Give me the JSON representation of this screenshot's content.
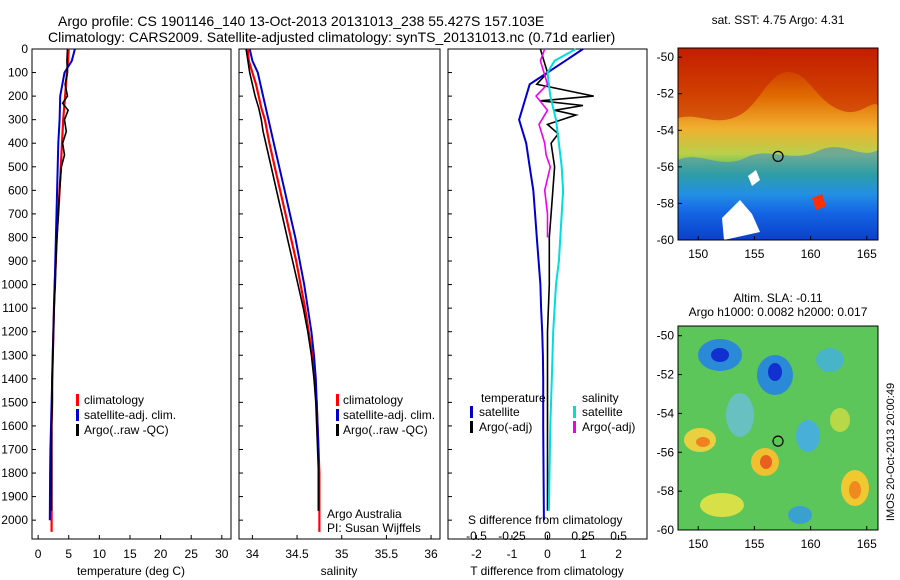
{
  "header": {
    "line1": "Argo profile: CS 1901146_140 13-Oct-2013 20131013_238 55.427S 157.103E",
    "line2": "Climatology: CARS2009. Satellite-adjusted climatology: synTS_20131013.nc (0.71d earlier)"
  },
  "depth_ticks": [
    "0",
    "100",
    "200",
    "300",
    "400",
    "500",
    "600",
    "700",
    "800",
    "900",
    "1000",
    "1100",
    "1200",
    "1300",
    "1400",
    "1500",
    "1600",
    "1700",
    "1800",
    "1900",
    "2000"
  ],
  "colors": {
    "climatology": "#ff0000",
    "satellite": "#0000cc",
    "argo": "#000000",
    "satellite_s": "#00dddd",
    "argo_s": "#ee00ee"
  },
  "chart_data": [
    {
      "id": "temperature",
      "type": "line",
      "xlabel": "temperature (deg C)",
      "ylabel": "",
      "xlim": [
        -1,
        31.5
      ],
      "ylim": [
        2080,
        0
      ],
      "xticks": [
        "0",
        "5",
        "10",
        "15",
        "20",
        "25",
        "30"
      ],
      "legend": [
        "climatology",
        "satellite-adj. clim.",
        "Argo(..raw -QC)"
      ],
      "series": [
        {
          "name": "climatology",
          "x": [
            5.0,
            4.9,
            4.7,
            4.4,
            4.1,
            3.9,
            3.7,
            3.5,
            3.3,
            3.0,
            2.9,
            2.7,
            2.6,
            2.5,
            2.4,
            2.3,
            2.3,
            2.2,
            2.2,
            2.2,
            2.2
          ],
          "y": [
            0,
            50,
            100,
            200,
            300,
            400,
            500,
            600,
            700,
            800,
            900,
            1000,
            1100,
            1200,
            1300,
            1400,
            1500,
            1600,
            1700,
            1800,
            2050
          ]
        },
        {
          "name": "satellite-adj. clim.",
          "x": [
            6.0,
            5.5,
            4.3,
            3.6,
            3.5,
            3.3,
            3.2,
            3.1,
            3.0,
            2.9,
            2.8,
            2.7,
            2.6,
            2.5,
            2.4,
            2.3,
            2.2,
            2.1,
            2.0,
            1.95,
            1.9
          ],
          "y": [
            0,
            50,
            100,
            200,
            300,
            400,
            500,
            600,
            700,
            800,
            900,
            1000,
            1100,
            1200,
            1300,
            1400,
            1500,
            1600,
            1700,
            1800,
            2000
          ]
        },
        {
          "name": "Argo(..raw -QC)",
          "x": [
            4.8,
            4.7,
            4.8,
            4.4,
            4.8,
            4.0,
            4.9,
            4.3,
            4.6,
            4.0,
            4.3,
            3.8,
            3.5,
            3.3,
            3.1,
            2.9,
            2.8,
            2.6,
            2.5,
            2.4,
            2.3,
            2.3,
            2.2,
            2.2,
            2.2,
            2.2
          ],
          "y": [
            0,
            50,
            100,
            150,
            200,
            230,
            260,
            300,
            350,
            400,
            450,
            500,
            600,
            700,
            800,
            900,
            1000,
            1100,
            1200,
            1300,
            1400,
            1500,
            1600,
            1700,
            1800,
            1960
          ]
        }
      ]
    },
    {
      "id": "salinity",
      "type": "line",
      "xlabel": "salinity",
      "ylabel": "",
      "xlim": [
        33.85,
        36.1
      ],
      "ylim": [
        2080,
        0
      ],
      "xticks": [
        "34",
        "34.5",
        "35",
        "35.5",
        "36"
      ],
      "legend": [
        "climatology",
        "satellite-adj. clim.",
        "Argo(..raw -QC)"
      ],
      "annotation": [
        "Argo Australia",
        "PI: Susan Wijffels"
      ],
      "series": [
        {
          "name": "climatology",
          "x": [
            33.95,
            33.96,
            34.0,
            34.04,
            34.07,
            34.1,
            34.14,
            34.19,
            34.25,
            34.31,
            34.37,
            34.43,
            34.49,
            34.54,
            34.59,
            34.63,
            34.67,
            34.7,
            34.72,
            34.73,
            34.74,
            34.75,
            34.75
          ],
          "y": [
            0,
            50,
            100,
            150,
            200,
            250,
            300,
            400,
            500,
            600,
            700,
            800,
            900,
            1000,
            1100,
            1200,
            1300,
            1400,
            1500,
            1600,
            1700,
            1800,
            2050
          ]
        },
        {
          "name": "satellite-adj. clim.",
          "x": [
            33.97,
            34.0,
            34.06,
            34.12,
            34.18,
            34.24,
            34.3,
            34.36,
            34.42,
            34.48,
            34.53,
            34.58,
            34.62,
            34.66,
            34.69,
            34.71,
            34.72,
            34.73,
            34.74,
            34.74,
            34.74
          ],
          "y": [
            0,
            50,
            100,
            200,
            300,
            400,
            500,
            600,
            700,
            800,
            900,
            1000,
            1100,
            1200,
            1300,
            1400,
            1500,
            1600,
            1700,
            1800,
            1960
          ]
        },
        {
          "name": "Argo(..raw -QC)",
          "x": [
            33.93,
            33.95,
            33.97,
            34.0,
            34.03,
            34.07,
            34.1,
            34.12,
            34.15,
            34.21,
            34.27,
            34.33,
            34.39,
            34.45,
            34.51,
            34.57,
            34.62,
            34.66,
            34.69,
            34.71,
            34.72,
            34.73,
            34.74,
            34.74,
            34.74
          ],
          "y": [
            0,
            50,
            100,
            150,
            200,
            250,
            300,
            350,
            400,
            500,
            600,
            700,
            800,
            900,
            1000,
            1100,
            1200,
            1300,
            1400,
            1500,
            1600,
            1700,
            1800,
            1900,
            1960
          ]
        }
      ]
    },
    {
      "id": "difference",
      "type": "line",
      "xlabel": "T difference from climatology",
      "top_label": "S difference from climatology",
      "xlim": [
        -2.8,
        2.8
      ],
      "ylim": [
        2080,
        0
      ],
      "xticks": [
        "-2",
        "-1",
        "0",
        "1",
        "2"
      ],
      "s_ticks": [
        "-0.5",
        "-0.25",
        "0",
        "0.25",
        "0.5"
      ],
      "legend_left": {
        "title": "temperature",
        "items": [
          "satellite",
          "Argo(-adj)"
        ]
      },
      "legend_right": {
        "title": "salinity",
        "items": [
          "satellite",
          "Argo(-adj)"
        ]
      },
      "series": [
        {
          "name": "T satellite",
          "x": [
            1.0,
            0.5,
            -0.5,
            -0.8,
            -0.6,
            -0.5,
            -0.4,
            -0.35,
            -0.3,
            -0.25,
            -0.2,
            -0.18,
            -0.15,
            -0.13,
            -0.12,
            -0.12,
            -0.12,
            -0.1
          ],
          "y": [
            0,
            50,
            150,
            300,
            400,
            500,
            600,
            700,
            800,
            900,
            1000,
            1100,
            1200,
            1300,
            1400,
            1500,
            1600,
            2000
          ]
        },
        {
          "name": "T Argo(-adj)",
          "x": [
            -0.2,
            -0.1,
            0.0,
            -0.3,
            1.3,
            -0.2,
            1.0,
            0.2,
            0.8,
            0.0,
            0.3,
            0.1,
            0.2,
            0.1,
            0.05,
            0.05,
            0.0,
            0.0,
            0.0,
            0.0
          ],
          "y": [
            0,
            50,
            100,
            150,
            200,
            220,
            240,
            260,
            280,
            320,
            360,
            400,
            500,
            700,
            800,
            1000,
            1200,
            1400,
            1600,
            1960
          ]
        },
        {
          "name": "S satellite",
          "x": [
            0.2,
            0.05,
            0.0,
            0.02,
            0.06,
            0.08,
            0.1,
            0.11,
            0.1,
            0.09,
            0.08,
            0.06,
            0.05,
            0.04,
            0.03,
            0.02,
            0.01
          ],
          "y": [
            0,
            50,
            100,
            200,
            300,
            400,
            500,
            600,
            700,
            800,
            900,
            1000,
            1100,
            1200,
            1400,
            1600,
            1960
          ]
        },
        {
          "name": "S Argo(-adj)",
          "x": [
            -0.02,
            -0.05,
            0.0,
            -0.08,
            0.0,
            -0.06,
            -0.02,
            -0.01,
            0.02,
            -0.02,
            0.0,
            0.0
          ],
          "y": [
            0,
            50,
            150,
            200,
            260,
            320,
            400,
            450,
            500,
            600,
            700,
            800
          ]
        }
      ]
    },
    {
      "id": "sst-map",
      "type": "heatmap",
      "title": "sat. SST: 4.75  Argo: 4.31",
      "xlim": [
        148.2,
        166.0
      ],
      "ylim": [
        -60.0,
        -49.5
      ],
      "xticks": [
        "150",
        "155",
        "160",
        "165"
      ],
      "yticks": [
        "-50",
        "-52",
        "-54",
        "-56",
        "-58",
        "-60"
      ],
      "marker": {
        "lon": 157.103,
        "lat": -55.427
      }
    },
    {
      "id": "sla-map",
      "type": "heatmap",
      "title": "Altim. SLA: -0.11",
      "subtitle": "Argo h1000: 0.0082 h2000: 0.017",
      "xlim": [
        148.2,
        166.0
      ],
      "ylim": [
        -60.0,
        -49.5
      ],
      "xticks": [
        "150",
        "155",
        "160",
        "165"
      ],
      "yticks": [
        "-50",
        "-52",
        "-54",
        "-56",
        "-58",
        "-60"
      ],
      "marker": {
        "lon": 157.103,
        "lat": -55.427
      }
    }
  ],
  "stamp": "IMOS 20-Oct-2013 20:00:49"
}
